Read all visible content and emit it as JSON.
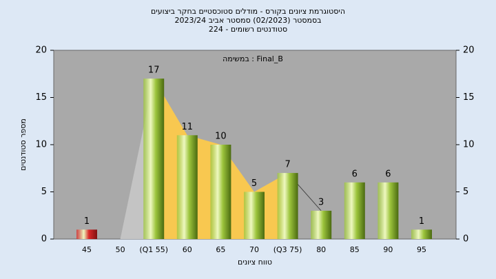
{
  "chart_data": {
    "type": "bar",
    "title": "היסטוגרמת ציונים בקורס - מודלים סטוכסטיים בחקר ביצועים",
    "subtitle": "בסמסטר  (02/2023)  סמסטר אביב 2023/24",
    "subtitle2": "סטודנטים רשומים - 224",
    "annotation": "Final_B : במשימה",
    "x_label": "טווח ציונים",
    "y_label": "מספר סטודנטים",
    "categories": [
      "45",
      "50",
      "(Q1 55)",
      "60",
      "65",
      "70",
      "(Q3 75)",
      "80",
      "85",
      "90",
      "95"
    ],
    "values": [
      1,
      0,
      17,
      11,
      10,
      5,
      7,
      3,
      6,
      6,
      1
    ],
    "value_labels": [
      "1",
      null,
      "17",
      "11",
      "10",
      "5",
      "7",
      "3",
      "6",
      "6",
      "1"
    ],
    "colors": [
      "#d82828",
      "#9cc43c",
      "#9cc43c",
      "#9cc43c",
      "#9cc43c",
      "#9cc43c",
      "#9cc43c",
      "#9cc43c",
      "#9cc43c",
      "#9cc43c",
      "#9cc43c"
    ],
    "ylim": [
      0,
      20
    ],
    "yticks": [
      0,
      5,
      10,
      15,
      20
    ],
    "grid": false
  }
}
